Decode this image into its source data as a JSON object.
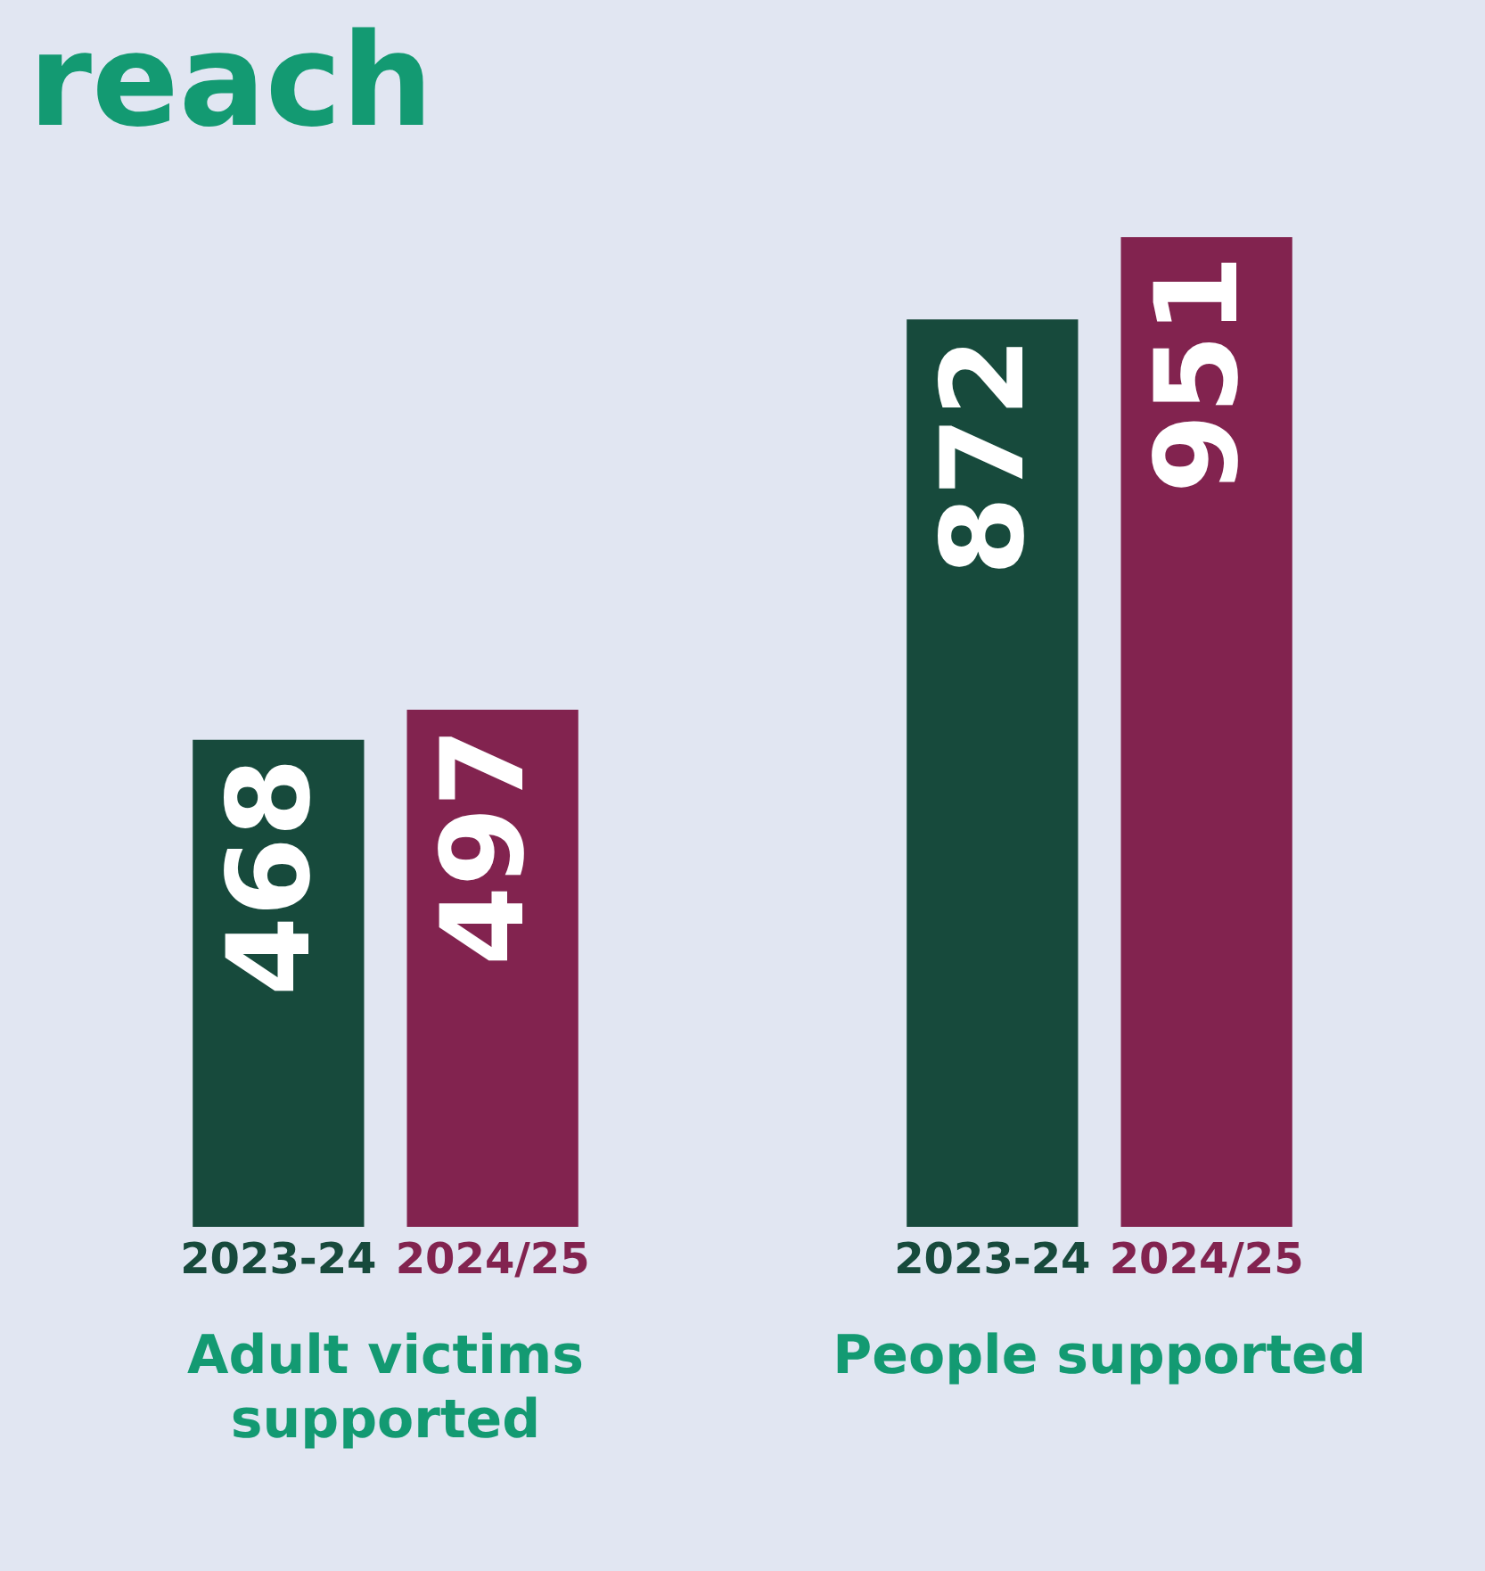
{
  "chart_data": {
    "type": "bar",
    "title": "reach",
    "categories": [
      "Adult victims supported",
      "People supported"
    ],
    "series": [
      {
        "name": "2023-24",
        "color": "#174a3c",
        "values": [
          468,
          872
        ]
      },
      {
        "name": "2024/25",
        "color": "#82234f",
        "values": [
          497,
          951
        ]
      }
    ],
    "data_labels": true,
    "grid": false,
    "legend": false,
    "tick_labels": "x"
  }
}
